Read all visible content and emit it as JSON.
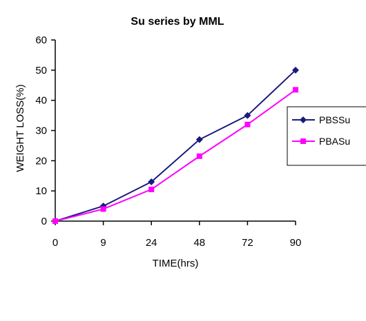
{
  "chart_data": {
    "type": "line",
    "title": "Su series by MML",
    "xlabel": "TIME(hrs)",
    "ylabel": "WEIGHT LOSS(%)",
    "categories": [
      "0",
      "9",
      "24",
      "48",
      "72",
      "90"
    ],
    "ylim": [
      0,
      60
    ],
    "yticks": [
      "0",
      "10",
      "20",
      "30",
      "40",
      "50",
      "60"
    ],
    "grid": false,
    "legend_position": "right",
    "series": [
      {
        "name": "PBSSu",
        "color": "#1a1a7a",
        "marker": "diamond",
        "values": [
          0,
          5,
          13,
          27,
          35,
          50
        ]
      },
      {
        "name": "PBASu",
        "color": "#ff00ff",
        "marker": "square",
        "values": [
          0,
          4,
          10.5,
          21.5,
          32,
          43.5
        ]
      }
    ]
  }
}
